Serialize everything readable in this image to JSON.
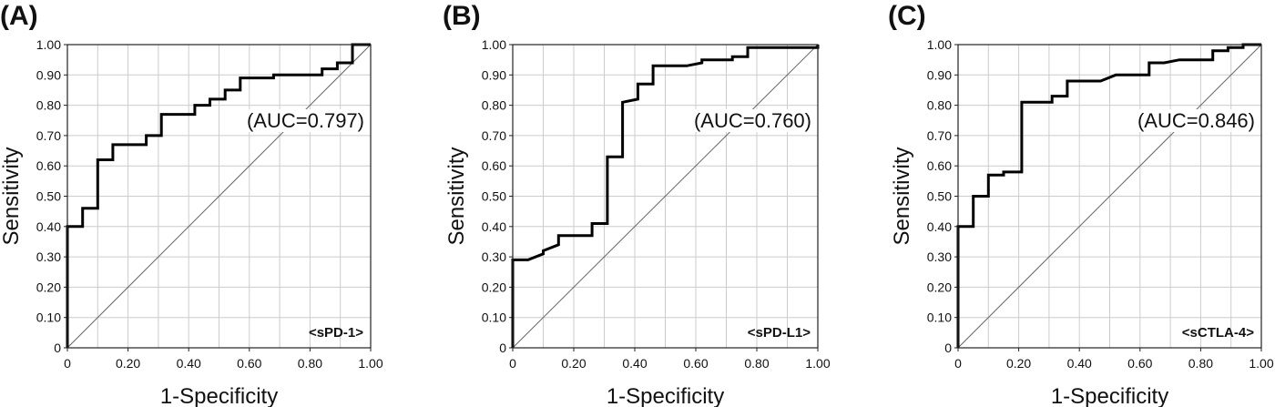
{
  "chart_data": [
    {
      "type": "line",
      "panel_label": "(A)",
      "marker_name": "<sPD-1>",
      "annotation": "(AUC=0.797)",
      "xlabel": "1-Specificity",
      "ylabel": "Sensitivity",
      "xlim": [
        0,
        1
      ],
      "ylim": [
        0,
        1
      ],
      "x_ticks": [
        "0",
        "0.20",
        "0.40",
        "0.60",
        "0.80",
        "1.00"
      ],
      "y_ticks": [
        "0",
        "0.10",
        "0.20",
        "0.30",
        "0.40",
        "0.50",
        "0.60",
        "0.70",
        "0.80",
        "0.90",
        "1.00"
      ],
      "grid": true,
      "reference_line": [
        [
          0,
          0
        ],
        [
          1,
          1
        ]
      ],
      "roc": [
        [
          0,
          0
        ],
        [
          0,
          0.4
        ],
        [
          0.05,
          0.4
        ],
        [
          0.05,
          0.46
        ],
        [
          0.1,
          0.46
        ],
        [
          0.1,
          0.62
        ],
        [
          0.15,
          0.62
        ],
        [
          0.15,
          0.67
        ],
        [
          0.26,
          0.67
        ],
        [
          0.26,
          0.7
        ],
        [
          0.31,
          0.7
        ],
        [
          0.31,
          0.77
        ],
        [
          0.42,
          0.77
        ],
        [
          0.42,
          0.8
        ],
        [
          0.47,
          0.8
        ],
        [
          0.47,
          0.82
        ],
        [
          0.52,
          0.82
        ],
        [
          0.52,
          0.85
        ],
        [
          0.57,
          0.85
        ],
        [
          0.57,
          0.89
        ],
        [
          0.68,
          0.89
        ],
        [
          0.68,
          0.9
        ],
        [
          0.84,
          0.9
        ],
        [
          0.84,
          0.92
        ],
        [
          0.89,
          0.92
        ],
        [
          0.89,
          0.94
        ],
        [
          0.94,
          0.94
        ],
        [
          0.94,
          1.0
        ],
        [
          1.0,
          1.0
        ]
      ]
    },
    {
      "type": "line",
      "panel_label": "(B)",
      "marker_name": "<sPD-L1>",
      "annotation": "(AUC=0.760)",
      "xlabel": "1-Specificity",
      "ylabel": "Sensitivity",
      "xlim": [
        0,
        1
      ],
      "ylim": [
        0,
        1
      ],
      "x_ticks": [
        "0",
        "0.20",
        "0.40",
        "0.60",
        "0.80",
        "1.00"
      ],
      "y_ticks": [
        "0",
        "0.10",
        "0.20",
        "0.30",
        "0.40",
        "0.50",
        "0.60",
        "0.70",
        "0.80",
        "0.90",
        "1.00"
      ],
      "grid": true,
      "reference_line": [
        [
          0,
          0
        ],
        [
          1,
          1
        ]
      ],
      "roc": [
        [
          0,
          0
        ],
        [
          0,
          0.29
        ],
        [
          0.05,
          0.29
        ],
        [
          0.1,
          0.31
        ],
        [
          0.1,
          0.32
        ],
        [
          0.15,
          0.34
        ],
        [
          0.15,
          0.37
        ],
        [
          0.26,
          0.37
        ],
        [
          0.26,
          0.41
        ],
        [
          0.31,
          0.41
        ],
        [
          0.31,
          0.63
        ],
        [
          0.36,
          0.63
        ],
        [
          0.36,
          0.81
        ],
        [
          0.41,
          0.82
        ],
        [
          0.41,
          0.87
        ],
        [
          0.46,
          0.87
        ],
        [
          0.46,
          0.93
        ],
        [
          0.57,
          0.93
        ],
        [
          0.62,
          0.94
        ],
        [
          0.62,
          0.95
        ],
        [
          0.72,
          0.95
        ],
        [
          0.72,
          0.96
        ],
        [
          0.77,
          0.96
        ],
        [
          0.77,
          0.99
        ],
        [
          1.0,
          0.99
        ],
        [
          1.0,
          1.0
        ]
      ]
    },
    {
      "type": "line",
      "panel_label": "(C)",
      "marker_name": "<sCTLA-4>",
      "annotation": "(AUC=0.846)",
      "xlabel": "1-Specificity",
      "ylabel": "Sensitivity",
      "xlim": [
        0,
        1
      ],
      "ylim": [
        0,
        1
      ],
      "x_ticks": [
        "0",
        "0.20",
        "0.40",
        "0.60",
        "0.80",
        "1.00"
      ],
      "y_ticks": [
        "0",
        "0.10",
        "0.20",
        "0.30",
        "0.40",
        "0.50",
        "0.60",
        "0.70",
        "0.80",
        "0.90",
        "1.00"
      ],
      "grid": true,
      "reference_line": [
        [
          0,
          0
        ],
        [
          1,
          1
        ]
      ],
      "roc": [
        [
          0,
          0
        ],
        [
          0,
          0.4
        ],
        [
          0.05,
          0.4
        ],
        [
          0.05,
          0.5
        ],
        [
          0.1,
          0.5
        ],
        [
          0.1,
          0.57
        ],
        [
          0.15,
          0.57
        ],
        [
          0.15,
          0.58
        ],
        [
          0.21,
          0.58
        ],
        [
          0.21,
          0.81
        ],
        [
          0.31,
          0.81
        ],
        [
          0.31,
          0.83
        ],
        [
          0.36,
          0.83
        ],
        [
          0.36,
          0.88
        ],
        [
          0.47,
          0.88
        ],
        [
          0.52,
          0.9
        ],
        [
          0.63,
          0.9
        ],
        [
          0.63,
          0.94
        ],
        [
          0.68,
          0.94
        ],
        [
          0.73,
          0.95
        ],
        [
          0.84,
          0.95
        ],
        [
          0.84,
          0.98
        ],
        [
          0.89,
          0.98
        ],
        [
          0.89,
          0.99
        ],
        [
          0.94,
          0.99
        ],
        [
          0.94,
          1.0
        ],
        [
          1.0,
          1.0
        ]
      ]
    }
  ]
}
